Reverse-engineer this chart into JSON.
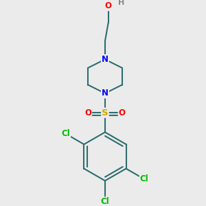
{
  "background_color": "#ebebeb",
  "bond_color": "#2d6e6e",
  "atom_colors": {
    "N": "#0000ff",
    "O": "#ff0000",
    "S": "#ccaa00",
    "Cl": "#00bb00",
    "H": "#888888",
    "C": "#2d6e6e"
  },
  "bond_width": 1.5,
  "font_size": 8.5
}
